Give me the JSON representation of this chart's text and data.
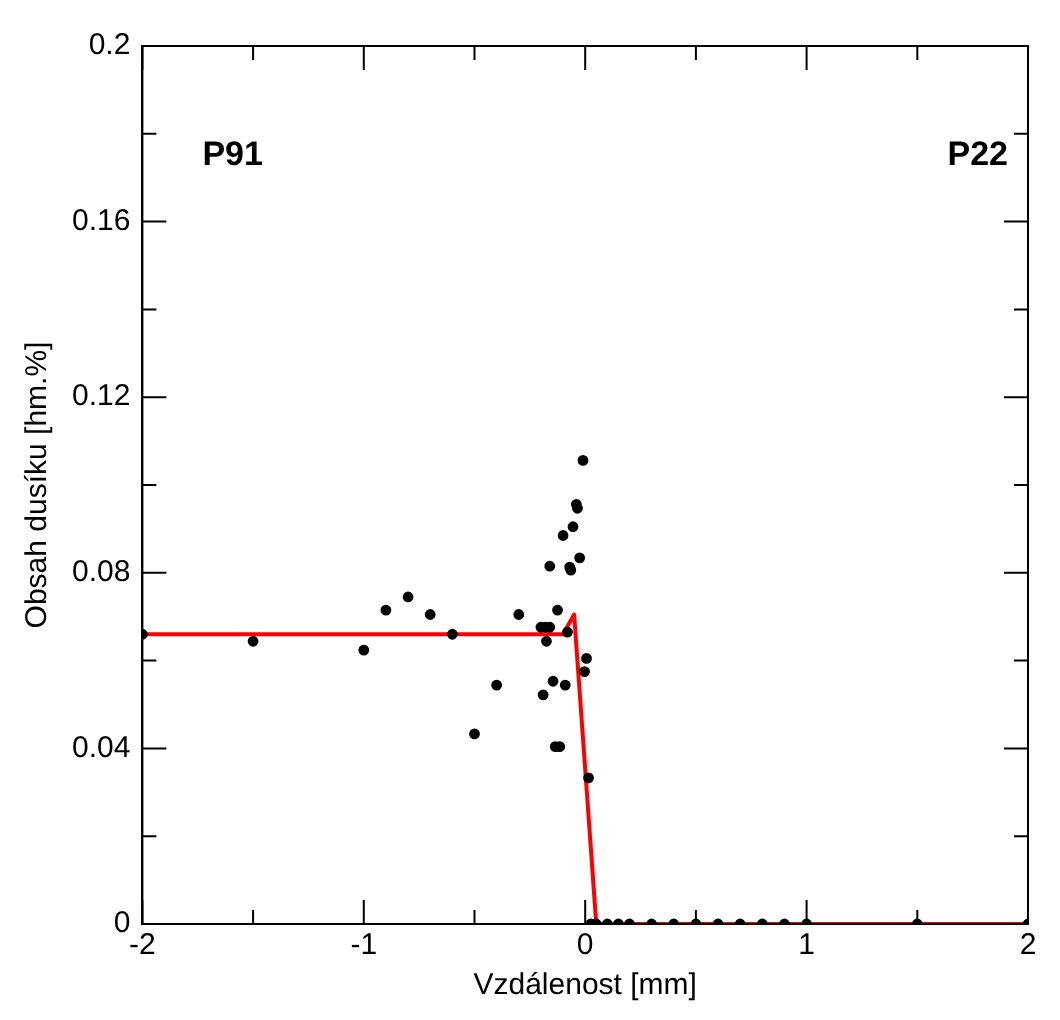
{
  "chart_data": {
    "type": "scatter",
    "xlabel": "Vzdálenost [mm]",
    "ylabel": "Obsah dusíku [hm.%]",
    "annotations": [
      "P91",
      "P22"
    ],
    "xlim": [
      -2,
      2
    ],
    "xticks": [
      -2,
      {
        "value": -1.5,
        "label": null
      },
      -1,
      {
        "value": -0.5,
        "label": null
      },
      0,
      {
        "value": 0.5,
        "label": null
      },
      1,
      {
        "value": 1.5,
        "label": null
      },
      2
    ],
    "ylim": [
      0,
      0.2
    ],
    "yticks": [
      0,
      {
        "value": 0.02,
        "label": null
      },
      0.04,
      {
        "value": 0.06,
        "label": null
      },
      0.08,
      {
        "value": 0.1,
        "label": null
      },
      0.12,
      {
        "value": 0.14,
        "label": null
      },
      0.16,
      {
        "value": 0.18,
        "label": null
      },
      0.2
    ],
    "grid": false,
    "legend": false,
    "series": [
      {
        "marker": "circle",
        "color": "#000000",
        "x": [
          -2,
          -1.5,
          -1.0,
          -0.9,
          -0.8,
          -0.7,
          -0.6,
          -0.5,
          -0.4,
          -0.3,
          -0.19,
          -0.175,
          -0.16,
          -0.2,
          -0.18,
          -0.16,
          -0.145,
          -0.135,
          -0.115,
          -0.125,
          -0.01,
          -0.04,
          -0.035,
          -0.055,
          -0.1,
          -0.025,
          -0.07,
          -0.065,
          -0.08,
          0.006,
          -0.003,
          -0.09,
          0.015,
          0.025,
          0.05,
          0.1,
          0.15,
          0.2,
          0.3,
          0.4,
          0.5,
          0.6,
          0.7,
          0.8,
          0.9,
          1.0,
          1.5,
          2.0
        ],
        "values": [
          0.066,
          0.0644,
          0.0624,
          0.0715,
          0.0745,
          0.0705,
          0.066,
          0.0433,
          0.0544,
          0.0705,
          0.0522,
          0.0644,
          0.0815,
          0.0676,
          0.0676,
          0.0676,
          0.0553,
          0.0404,
          0.0404,
          0.0715,
          0.1056,
          0.0956,
          0.0947,
          0.0905,
          0.0885,
          0.0834,
          0.0813,
          0.0806,
          0.0665,
          0.0605,
          0.0575,
          0.0544,
          0.0333,
          0,
          0,
          0,
          0,
          0,
          0,
          0,
          0,
          0,
          0,
          0,
          0,
          0,
          0,
          0
        ]
      },
      {
        "type": "line",
        "marker": "none",
        "color": "#ff0000",
        "x": [
          -2,
          -0.1,
          -0.05,
          0.05,
          2
        ],
        "values": [
          0.066,
          0.066,
          0.0705,
          0,
          0
        ]
      }
    ]
  }
}
